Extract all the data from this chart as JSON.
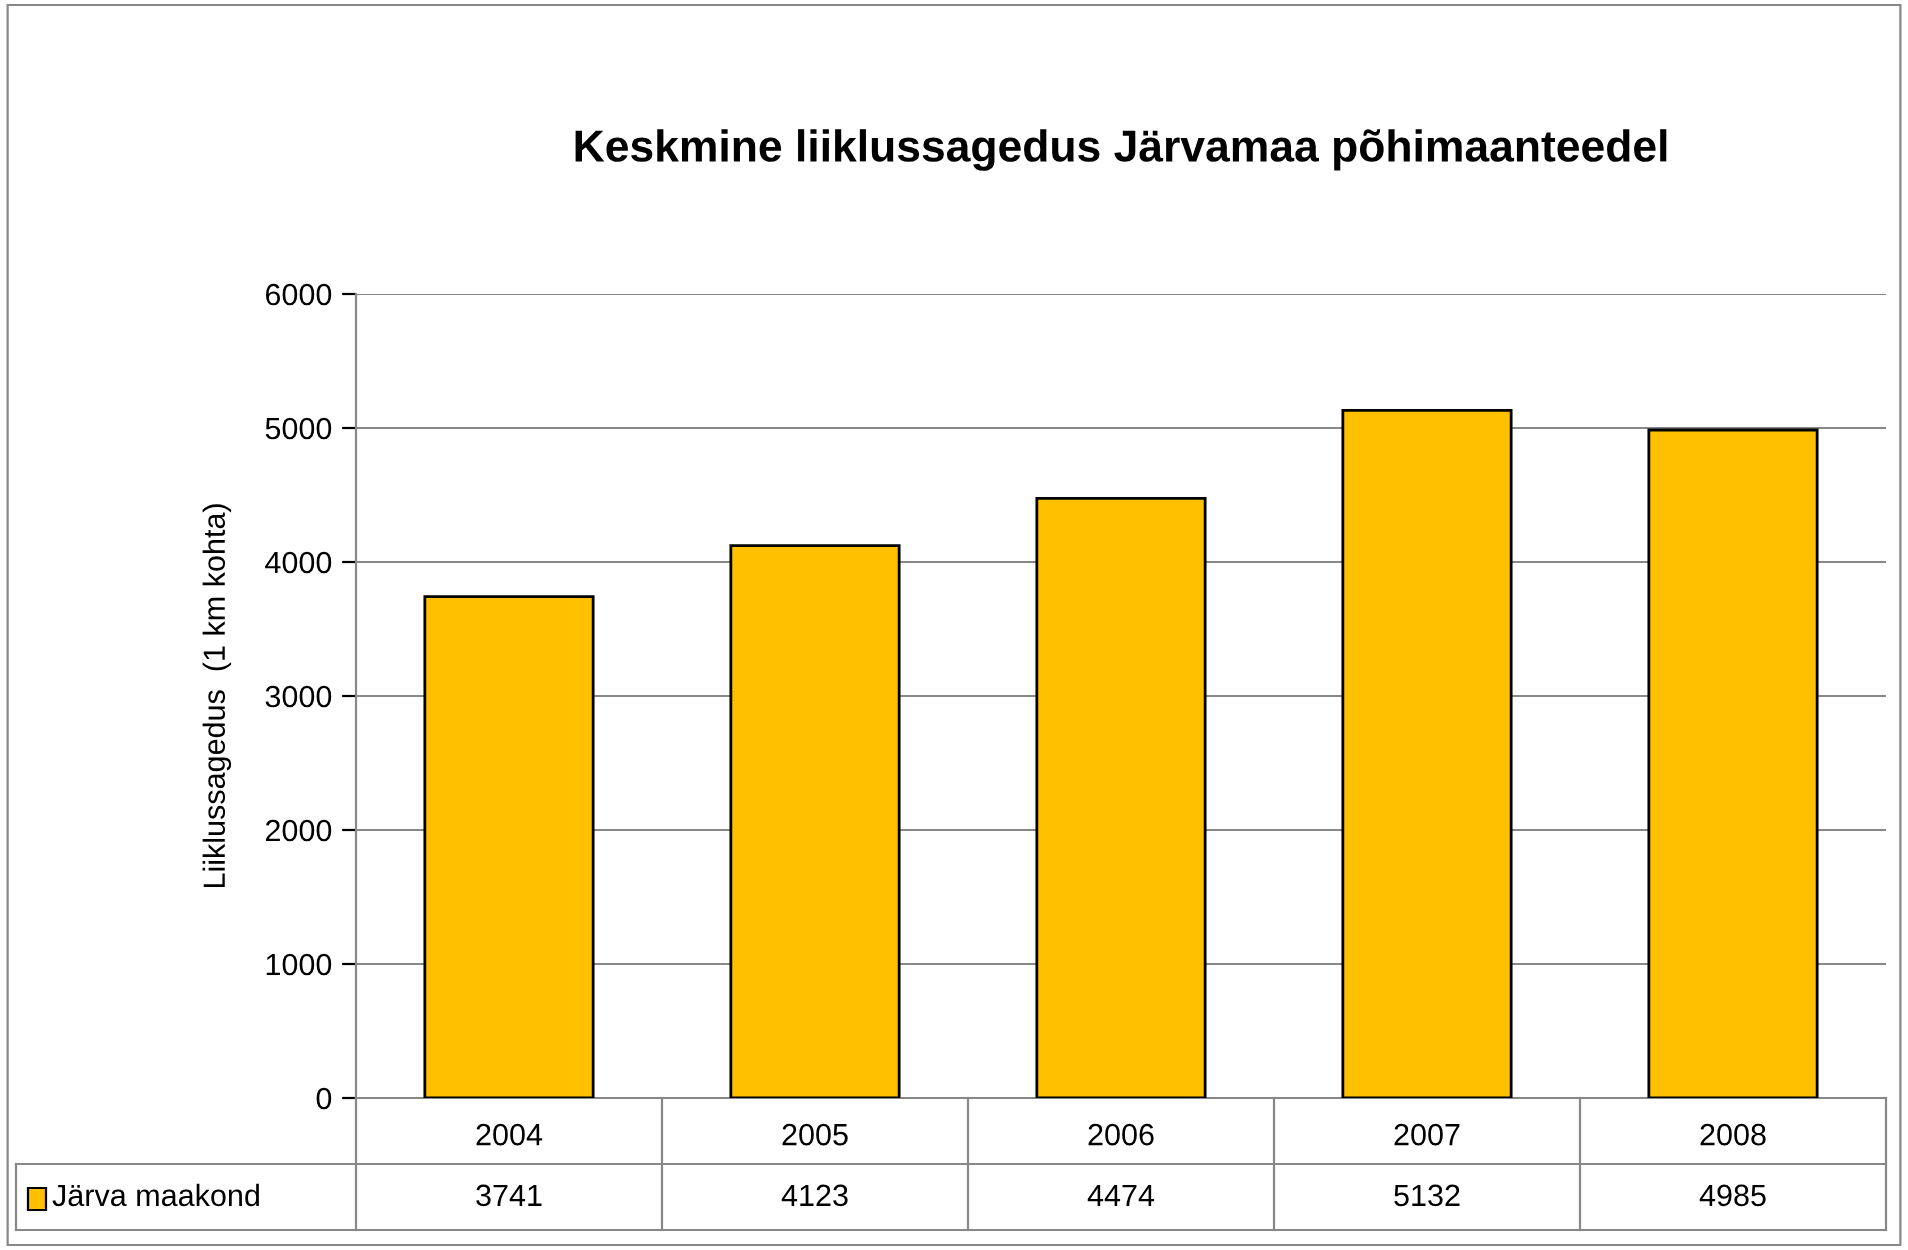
{
  "chart_data": {
    "type": "bar",
    "title": "Keskmine liiklussagedus Järvamaa põhimaanteedel",
    "ylabel": "Liiklussagedus  (1 km kohta)",
    "categories": [
      "2004",
      "2005",
      "2006",
      "2007",
      "2008"
    ],
    "series": [
      {
        "name": "Järva maakond",
        "color": "#ffc000",
        "values": [
          3741,
          4123,
          4474,
          5132,
          4985
        ]
      }
    ],
    "ylim": [
      0,
      6000
    ],
    "yticks": [
      0,
      1000,
      2000,
      3000,
      4000,
      5000,
      6000
    ],
    "grid": "y",
    "legend": "bottom",
    "data_labels": true
  }
}
